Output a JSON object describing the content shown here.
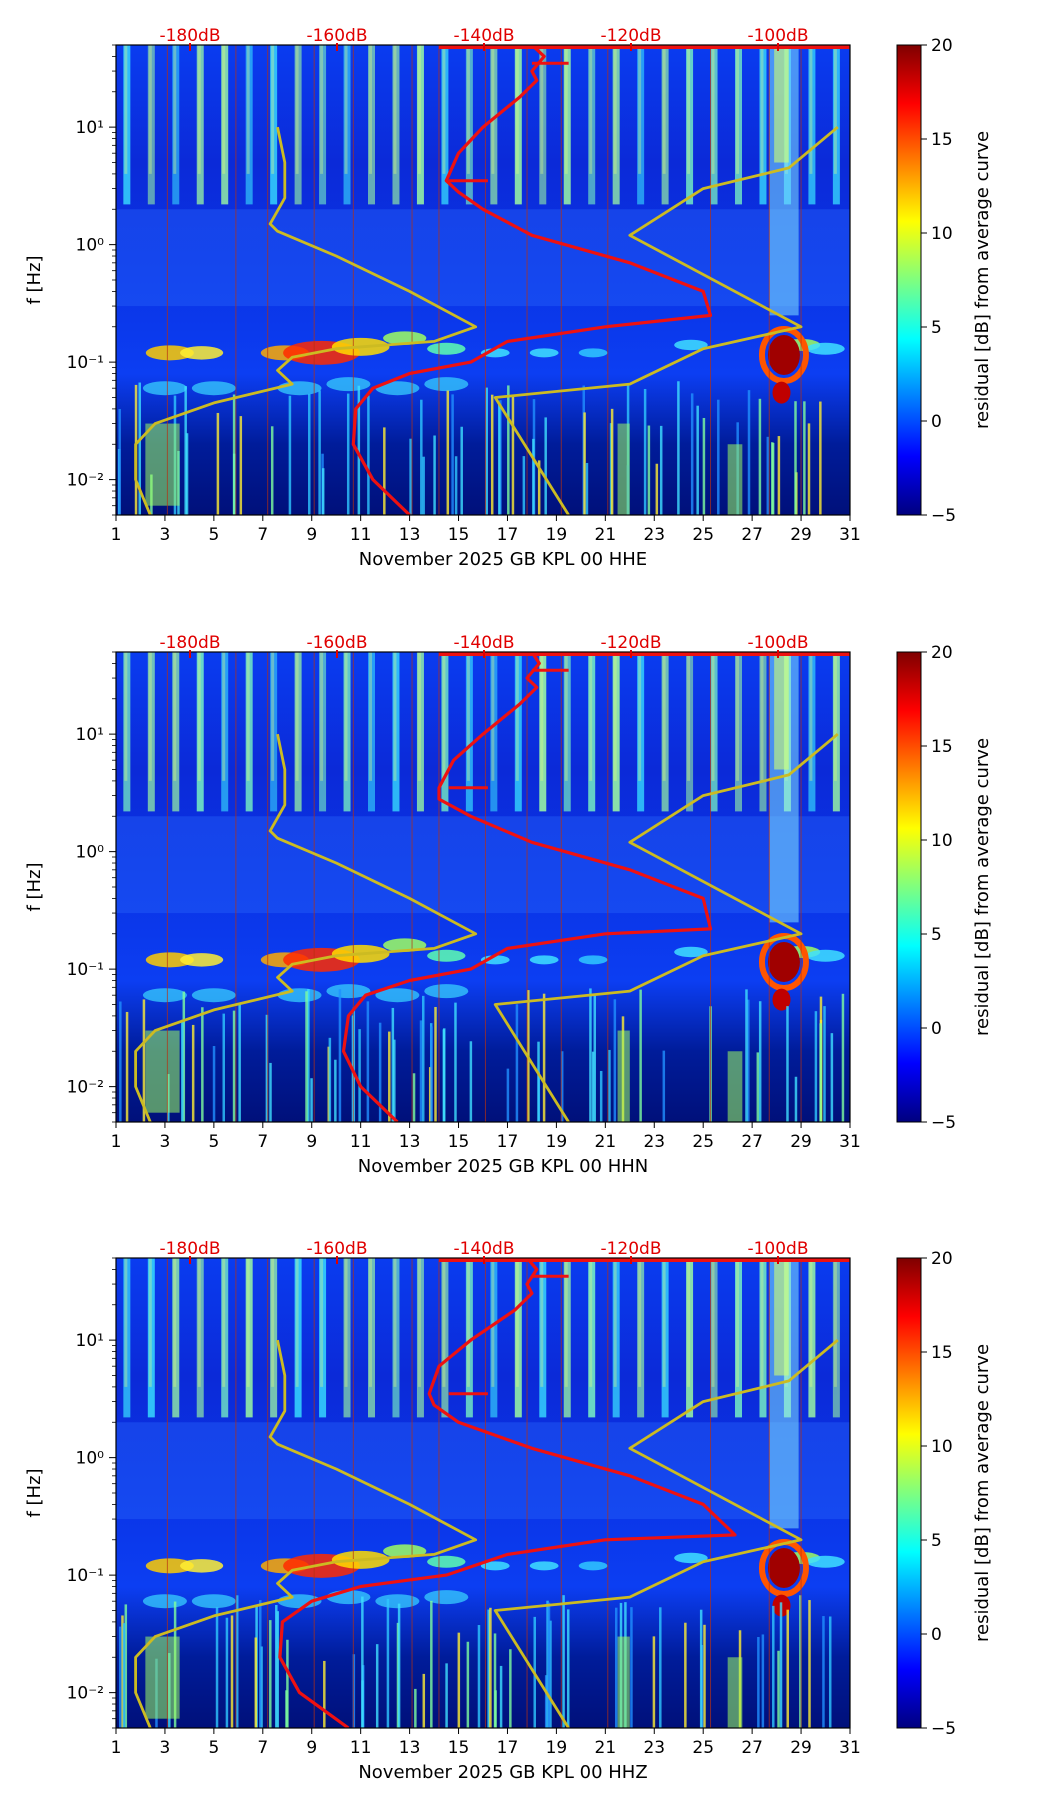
{
  "colors": {
    "jet": [
      "#00007f",
      "#0000ff",
      "#007fff",
      "#00ffff",
      "#7fff7f",
      "#ffff00",
      "#ff7f00",
      "#ff0000",
      "#7f0000"
    ],
    "noise_model": "#ccbb22",
    "mean_psd": "#ee1111",
    "db_scale": "#e00000"
  },
  "chart_data": [
    {
      "type": "heatmap",
      "xlabel": "November 2025 GB KPL 00 HHE",
      "ylabel": "f [Hz]",
      "xlim": [
        1,
        31
      ],
      "ylim": [
        0.005,
        50
      ],
      "yscale": "log",
      "x_ticks": [
        "1",
        "3",
        "5",
        "7",
        "9",
        "11",
        "13",
        "15",
        "17",
        "19",
        "21",
        "23",
        "25",
        "27",
        "29",
        "31"
      ],
      "y_ticks": [
        "10⁻²",
        "10⁻¹",
        "10⁰",
        "10¹"
      ],
      "colorbar": {
        "label": "residual [dB] from average curve",
        "range": [
          -5,
          20
        ],
        "ticks": [
          "−5",
          "0",
          "5",
          "10",
          "15",
          "20"
        ]
      },
      "db_scale": {
        "labels": [
          "-180dB",
          "-160dB",
          "-140dB",
          "-120dB",
          "-100dB"
        ],
        "values": [
          -180,
          -160,
          -140,
          -120,
          -100
        ]
      },
      "series": [
        {
          "role": "noise-model-low",
          "x": [
            2.4,
            1.8,
            1.8,
            2.6,
            5,
            8.2,
            7.6,
            8.2,
            10,
            14,
            15.7,
            13,
            10,
            7.6,
            7.3,
            7.9,
            7.9,
            7.6
          ],
          "y": [
            0.005,
            0.01,
            0.02,
            0.03,
            0.045,
            0.065,
            0.085,
            0.11,
            0.13,
            0.15,
            0.2,
            0.4,
            0.8,
            1.3,
            1.5,
            2.5,
            5,
            10
          ]
        },
        {
          "role": "noise-model-high",
          "x": [
            19.5,
            16.5,
            22,
            25,
            29,
            22,
            25,
            28.5,
            30.5
          ],
          "y": [
            0.005,
            0.05,
            0.065,
            0.13,
            0.2,
            1.2,
            3,
            4.5,
            10
          ]
        },
        {
          "role": "mean-psd",
          "x": [
            13,
            11.5,
            10.7,
            10.8,
            11.5,
            13,
            15.5,
            17,
            21,
            25.3,
            25,
            22,
            18,
            16,
            15,
            14.5,
            15,
            16,
            17.5,
            18.2,
            18,
            18.5,
            18
          ],
          "y": [
            0.005,
            0.01,
            0.02,
            0.04,
            0.06,
            0.08,
            0.1,
            0.15,
            0.2,
            0.25,
            0.4,
            0.7,
            1.2,
            2,
            2.8,
            3.5,
            6,
            10,
            18,
            25,
            30,
            40,
            50
          ]
        }
      ]
    },
    {
      "type": "heatmap",
      "xlabel": "November 2025 GB KPL 00 HHN",
      "ylabel": "f [Hz]",
      "xlim": [
        1,
        31
      ],
      "ylim": [
        0.005,
        50
      ],
      "yscale": "log",
      "x_ticks": [
        "1",
        "3",
        "5",
        "7",
        "9",
        "11",
        "13",
        "15",
        "17",
        "19",
        "21",
        "23",
        "25",
        "27",
        "29",
        "31"
      ],
      "y_ticks": [
        "10⁻²",
        "10⁻¹",
        "10⁰",
        "10¹"
      ],
      "colorbar": {
        "label": "residual [dB] from average curve",
        "range": [
          -5,
          20
        ],
        "ticks": [
          "−5",
          "0",
          "5",
          "10",
          "15",
          "20"
        ]
      },
      "db_scale": {
        "labels": [
          "-180dB",
          "-160dB",
          "-140dB",
          "-120dB",
          "-100dB"
        ],
        "values": [
          -180,
          -160,
          -140,
          -120,
          -100
        ]
      },
      "series": [
        {
          "role": "noise-model-low",
          "x": [
            2.4,
            1.8,
            1.8,
            2.6,
            5,
            8.2,
            7.6,
            8.2,
            10,
            14,
            15.7,
            13,
            10,
            7.6,
            7.3,
            7.9,
            7.9,
            7.6
          ],
          "y": [
            0.005,
            0.01,
            0.02,
            0.03,
            0.045,
            0.065,
            0.085,
            0.11,
            0.13,
            0.15,
            0.2,
            0.4,
            0.8,
            1.3,
            1.5,
            2.5,
            5,
            10
          ]
        },
        {
          "role": "noise-model-high",
          "x": [
            19.5,
            16.5,
            22,
            25,
            29,
            22,
            25,
            28.5,
            30.5
          ],
          "y": [
            0.005,
            0.05,
            0.065,
            0.13,
            0.2,
            1.2,
            3,
            4.5,
            10
          ]
        },
        {
          "role": "mean-psd",
          "x": [
            12.5,
            11,
            10.3,
            10.5,
            11.2,
            13,
            15.5,
            17,
            21,
            25.3,
            25,
            22,
            18,
            15.5,
            14.2,
            14.2,
            14.8,
            16,
            17.5,
            18.2,
            17.8,
            18.3,
            18
          ],
          "y": [
            0.005,
            0.01,
            0.02,
            0.04,
            0.06,
            0.08,
            0.1,
            0.15,
            0.2,
            0.22,
            0.4,
            0.7,
            1.2,
            2,
            2.8,
            3.5,
            6,
            10,
            18,
            25,
            30,
            40,
            50
          ]
        }
      ]
    },
    {
      "type": "heatmap",
      "xlabel": "November 2025 GB KPL 00 HHZ",
      "ylabel": "f [Hz]",
      "xlim": [
        1,
        31
      ],
      "ylim": [
        0.005,
        50
      ],
      "yscale": "log",
      "x_ticks": [
        "1",
        "3",
        "5",
        "7",
        "9",
        "11",
        "13",
        "15",
        "17",
        "19",
        "21",
        "23",
        "25",
        "27",
        "29",
        "31"
      ],
      "y_ticks": [
        "10⁻²",
        "10⁻¹",
        "10⁰",
        "10¹"
      ],
      "colorbar": {
        "label": "residual [dB] from average curve",
        "range": [
          -5,
          20
        ],
        "ticks": [
          "−5",
          "0",
          "5",
          "10",
          "15",
          "20"
        ]
      },
      "db_scale": {
        "labels": [
          "-180dB",
          "-160dB",
          "-140dB",
          "-120dB",
          "-100dB"
        ],
        "values": [
          -180,
          -160,
          -140,
          -120,
          -100
        ]
      },
      "series": [
        {
          "role": "noise-model-low",
          "x": [
            2.4,
            1.8,
            1.8,
            2.6,
            5,
            8.2,
            7.6,
            8.2,
            10,
            14,
            15.7,
            13,
            10,
            7.6,
            7.3,
            7.9,
            7.9,
            7.6
          ],
          "y": [
            0.005,
            0.01,
            0.02,
            0.03,
            0.045,
            0.065,
            0.085,
            0.11,
            0.13,
            0.15,
            0.2,
            0.4,
            0.8,
            1.3,
            1.5,
            2.5,
            5,
            10
          ]
        },
        {
          "role": "noise-model-high",
          "x": [
            19.5,
            16.5,
            22,
            25,
            29,
            22,
            25,
            28.5,
            30.5
          ],
          "y": [
            0.005,
            0.05,
            0.065,
            0.13,
            0.2,
            1.2,
            3,
            4.5,
            10
          ]
        },
        {
          "role": "mean-psd",
          "x": [
            10.5,
            8.5,
            7.7,
            7.8,
            9,
            11,
            14.5,
            17,
            21,
            26.3,
            25,
            22,
            18,
            15,
            14,
            13.8,
            14.2,
            15.5,
            17.3,
            18,
            17.8,
            18.2,
            17.8
          ],
          "y": [
            0.005,
            0.01,
            0.02,
            0.04,
            0.06,
            0.08,
            0.1,
            0.15,
            0.2,
            0.22,
            0.4,
            0.7,
            1.2,
            2,
            2.8,
            3.5,
            6,
            10,
            18,
            25,
            30,
            40,
            50
          ]
        }
      ]
    }
  ]
}
